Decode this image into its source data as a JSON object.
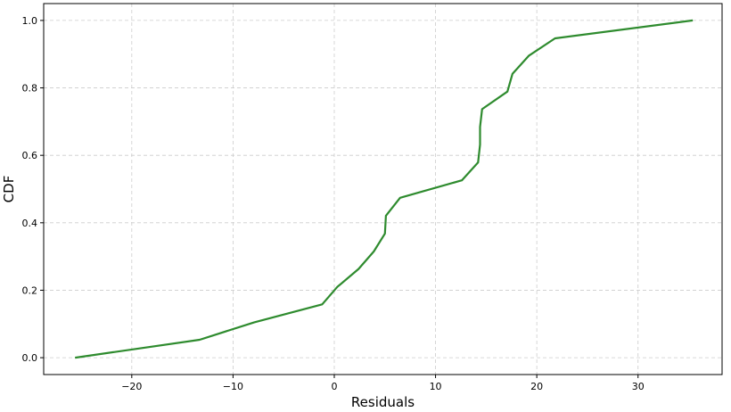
{
  "chart_data": {
    "type": "line",
    "title": "",
    "xlabel": "Residuals",
    "ylabel": "CDF",
    "xlim": [
      -28.7,
      38.3
    ],
    "ylim": [
      -0.05,
      1.05
    ],
    "x_ticks": [
      -20,
      -10,
      0,
      10,
      20,
      30
    ],
    "x_tick_labels": [
      "−20",
      "−10",
      "0",
      "10",
      "20",
      "30"
    ],
    "y_ticks": [
      0.0,
      0.2,
      0.4,
      0.6,
      0.8,
      1.0
    ],
    "y_tick_labels": [
      "0.0",
      "0.2",
      "0.4",
      "0.6",
      "0.8",
      "1.0"
    ],
    "grid": true,
    "legend": false,
    "colors": {
      "line": "#2e8b2e",
      "grid": "#cccccc",
      "axis": "#000000"
    },
    "series": [
      {
        "x": [
          -25.6,
          -13.3,
          -7.9,
          -1.2,
          0.3,
          2.4,
          3.9,
          5.0,
          5.1,
          6.5,
          12.6,
          14.2,
          14.4,
          14.4,
          14.6,
          17.1,
          17.6,
          19.2,
          21.8,
          35.4
        ],
        "y": [
          0.0,
          0.053,
          0.105,
          0.158,
          0.21,
          0.263,
          0.315,
          0.368,
          0.421,
          0.474,
          0.526,
          0.579,
          0.632,
          0.684,
          0.737,
          0.789,
          0.842,
          0.895,
          0.947,
          1.0
        ]
      }
    ]
  }
}
